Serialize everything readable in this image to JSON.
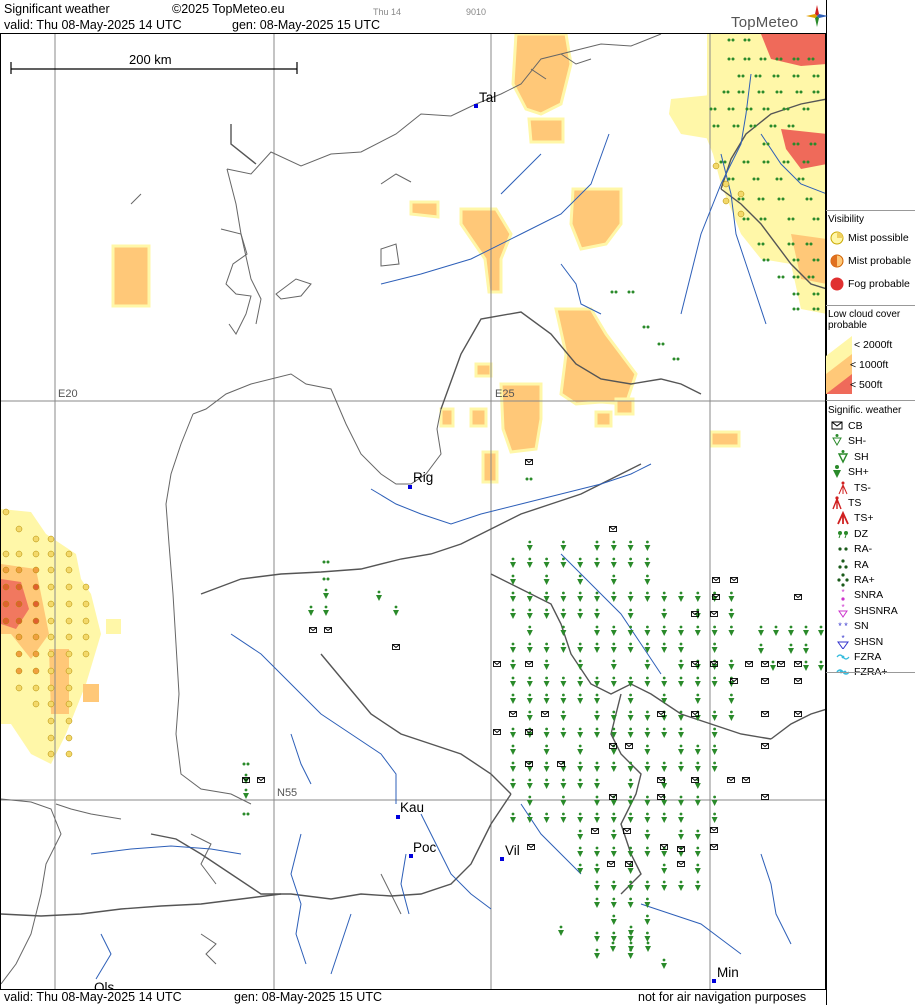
{
  "header": {
    "title": "Significant weather",
    "copyright": "©2025 TopMeteo.eu",
    "day_small": "Thu 14",
    "code_small": "9010",
    "valid": "valid:  Thu  08-May-2025  14 UTC",
    "generated": "gen: 08-May-2025 15 UTC",
    "brand": "TopMeteo"
  },
  "footer": {
    "valid": "valid:  Thu  08-May-2025  14 UTC",
    "generated": "gen: 08-May-2025 15 UTC",
    "disclaimer": "not for air navigation purposes"
  },
  "map": {
    "scale_label": "200 km",
    "grid_labels": {
      "lon20": "E20",
      "lon25": "E25",
      "lat55": "N55"
    },
    "cities": [
      {
        "name": "Tal"
      },
      {
        "name": "Rig"
      },
      {
        "name": "Kau"
      },
      {
        "name": "Poc"
      },
      {
        "name": "Vil"
      },
      {
        "name": "Min"
      },
      {
        "name": "Ols"
      }
    ]
  },
  "legend": {
    "visibility": {
      "title": "Visibility",
      "items": [
        "Mist possible",
        "Mist probable",
        "Fog probable"
      ]
    },
    "low_cloud": {
      "title_line1": "Low cloud cover",
      "title_line2": "probable",
      "items": [
        "< 2000ft",
        "< 1000ft",
        "<  500ft"
      ]
    },
    "signif": {
      "title": "Signific. weather",
      "items": [
        "CB",
        "SH-",
        "SH",
        "SH+",
        "TS-",
        "TS",
        "TS+",
        "DZ",
        "RA-",
        "RA",
        "RA+",
        "SNRA",
        "SHSNRA",
        "SN",
        "SHSN",
        "FZRA",
        "FZRA+"
      ]
    },
    "colors": {
      "mist_possible": "#fff7a8",
      "mist_probable": "#ffc878",
      "fog_probable": "#ef6a5a",
      "shower": "#2a8a2a",
      "thunder": "#d02020",
      "snow": "#cc33cc",
      "shsn": "#3333cc",
      "fzra": "#33bbdd"
    }
  }
}
